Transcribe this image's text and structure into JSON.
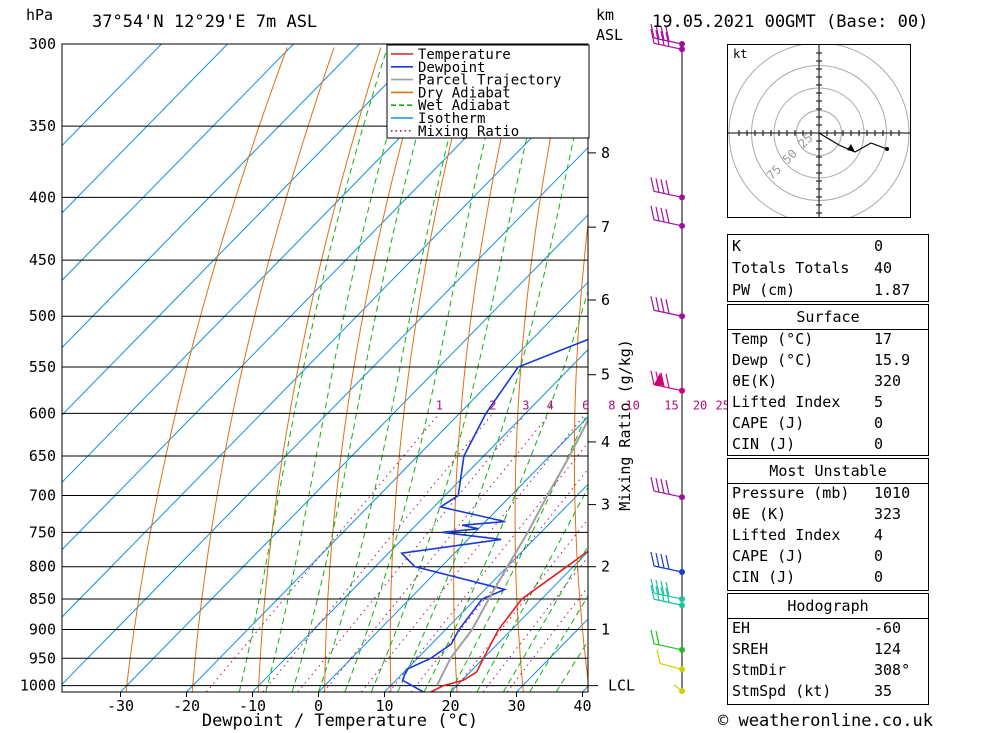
{
  "header": {
    "location": "37°54'N 12°29'E 7m ASL",
    "hpa_unit": "hPa",
    "km_unit": "km",
    "asl": "ASL",
    "datetime": "19.05.2021 00GMT (Base: 00)"
  },
  "footer": {
    "credit": "© weatheronline.co.uk"
  },
  "chart_data": {
    "type": "line",
    "xlabel": "Dewpoint / Temperature (°C)",
    "ylabel_right": "Mixing Ratio (g/kg)",
    "x_ticks": [
      -30,
      -20,
      -10,
      0,
      10,
      20,
      30,
      40
    ],
    "p_levels": [
      300,
      350,
      400,
      450,
      500,
      550,
      600,
      650,
      700,
      750,
      800,
      850,
      900,
      950,
      1000
    ],
    "ylim_hpa": [
      1010,
      300
    ],
    "xlim_c": [
      -38,
      40
    ],
    "km_ticks": [
      {
        "km": 1,
        "p": 900
      },
      {
        "km": 2,
        "p": 800
      },
      {
        "km": 3,
        "p": 712
      },
      {
        "km": 4,
        "p": 633
      },
      {
        "km": 5,
        "p": 558
      },
      {
        "km": 6,
        "p": 485
      },
      {
        "km": 7,
        "p": 423
      },
      {
        "km": 8,
        "p": 368
      }
    ],
    "lcl": {
      "label": "LCL",
      "p": 1000
    },
    "mixing_ratio_labels": [
      "1",
      "2",
      "3",
      "4",
      "6",
      "8",
      "10",
      "15",
      "20",
      "25"
    ],
    "legend": [
      {
        "name": "Temperature",
        "color": "#e02020",
        "style": "solid"
      },
      {
        "name": "Dewpoint",
        "color": "#1a3bd0",
        "style": "solid"
      },
      {
        "name": "Parcel Trajectory",
        "color": "#a0a0a0",
        "style": "solid"
      },
      {
        "name": "Dry Adiabat",
        "color": "#e07010",
        "style": "solid"
      },
      {
        "name": "Wet Adiabat",
        "color": "#10b010",
        "style": "dashed"
      },
      {
        "name": "Isotherm",
        "color": "#1090e0",
        "style": "solid"
      },
      {
        "name": "Mixing Ratio",
        "color": "#b0107a",
        "style": "dotted"
      }
    ],
    "series": [
      {
        "name": "Temperature",
        "points": [
          [
            1012,
            17
          ],
          [
            1000,
            18
          ],
          [
            990,
            20.2
          ],
          [
            975,
            21
          ],
          [
            950,
            20
          ],
          [
            925,
            19
          ],
          [
            900,
            18
          ],
          [
            850,
            17
          ],
          [
            800,
            19
          ],
          [
            775,
            20
          ],
          [
            750,
            20
          ],
          [
            740,
            21
          ],
          [
            725,
            19
          ],
          [
            700,
            16
          ],
          [
            650,
            12
          ],
          [
            600,
            7
          ],
          [
            550,
            3
          ],
          [
            500,
            -2
          ],
          [
            475,
            -3.5
          ],
          [
            450,
            -7
          ],
          [
            420,
            -10
          ],
          [
            400,
            -13
          ],
          [
            380,
            -13.5
          ],
          [
            360,
            -15
          ],
          [
            340,
            -18
          ],
          [
            320,
            -21
          ],
          [
            300,
            -24
          ]
        ]
      },
      {
        "name": "Dewpoint",
        "points": [
          [
            1012,
            15.9
          ],
          [
            990,
            11
          ],
          [
            970,
            10
          ],
          [
            950,
            12
          ],
          [
            925,
            13
          ],
          [
            900,
            12
          ],
          [
            850,
            11
          ],
          [
            835,
            13
          ],
          [
            800,
            -4
          ],
          [
            780,
            -8
          ],
          [
            760,
            5
          ],
          [
            750,
            -5
          ],
          [
            745,
            0
          ],
          [
            740,
            -3
          ],
          [
            735,
            3
          ],
          [
            715,
            -9
          ],
          [
            700,
            -8
          ],
          [
            650,
            -13
          ],
          [
            600,
            -16
          ],
          [
            550,
            -18
          ],
          [
            500,
            -6
          ],
          [
            470,
            0
          ],
          [
            450,
            1
          ],
          [
            445,
            -1
          ],
          [
            440,
            3
          ],
          [
            435,
            1
          ],
          [
            430,
            -4
          ],
          [
            420,
            1
          ],
          [
            410,
            -4
          ],
          [
            400,
            2
          ],
          [
            380,
            -7
          ],
          [
            370,
            -10
          ],
          [
            360,
            -11
          ],
          [
            340,
            -11
          ],
          [
            320,
            -11
          ],
          [
            300,
            -12
          ]
        ]
      },
      {
        "name": "Parcel Trajectory",
        "points": [
          [
            1000,
            17
          ],
          [
            950,
            15
          ],
          [
            900,
            14
          ],
          [
            850,
            12
          ],
          [
            800,
            10
          ],
          [
            750,
            8
          ],
          [
            700,
            5.5
          ],
          [
            650,
            3
          ],
          [
            600,
            0
          ],
          [
            550,
            -3.5
          ],
          [
            500,
            -7
          ],
          [
            450,
            -11
          ],
          [
            400,
            -16
          ],
          [
            350,
            -23
          ],
          [
            300,
            -31
          ]
        ]
      }
    ],
    "winds": [
      {
        "p": 1010,
        "color": "#d0d000",
        "barb": "calm"
      },
      {
        "p": 970,
        "color": "#d0d000",
        "barb": "short"
      },
      {
        "p": 935,
        "color": "#20c020",
        "barb": "medium"
      },
      {
        "p": 860,
        "color": "#20c0a0",
        "barb": "long"
      },
      {
        "p": 850,
        "color": "#20c0a0",
        "barb": "long"
      },
      {
        "p": 808,
        "color": "#1a3bd0",
        "barb": "long"
      },
      {
        "p": 702,
        "color": "#a010a0",
        "barb": "long"
      },
      {
        "p": 575,
        "color": "#d0007a",
        "barb": "flag"
      },
      {
        "p": 500,
        "color": "#a010a0",
        "barb": "long"
      },
      {
        "p": 422,
        "color": "#a010a0",
        "barb": "long"
      },
      {
        "p": 400,
        "color": "#a010a0",
        "barb": "long"
      },
      {
        "p": 303,
        "color": "#a010a0",
        "barb": "long"
      },
      {
        "p": 300,
        "color": "#a010a0",
        "barb": "long"
      }
    ],
    "hodograph": {
      "unit_label": "kt",
      "ring_labels": [
        "25",
        "50",
        "75"
      ]
    }
  },
  "indices": {
    "top": [
      {
        "k": "K",
        "v": "0"
      },
      {
        "k": "Totals Totals",
        "v": "40"
      },
      {
        "k": "PW (cm)",
        "v": "1.87"
      }
    ],
    "surface": {
      "title": "Surface",
      "rows": [
        {
          "k": "Temp (°C)",
          "v": "17"
        },
        {
          "k": "Dewp (°C)",
          "v": "15.9"
        },
        {
          "k": "θE(K)",
          "v": "320"
        },
        {
          "k": "Lifted Index",
          "v": "5"
        },
        {
          "k": "CAPE (J)",
          "v": "0"
        },
        {
          "k": "CIN (J)",
          "v": "0"
        }
      ]
    },
    "most_unstable": {
      "title": "Most Unstable",
      "rows": [
        {
          "k": "Pressure (mb)",
          "v": "1010"
        },
        {
          "k": "θE (K)",
          "v": "323"
        },
        {
          "k": "Lifted Index",
          "v": "4"
        },
        {
          "k": "CAPE (J)",
          "v": "0"
        },
        {
          "k": "CIN (J)",
          "v": "0"
        }
      ]
    },
    "hodograph": {
      "title": "Hodograph",
      "rows": [
        {
          "k": "EH",
          "v": "-60"
        },
        {
          "k": "SREH",
          "v": "124"
        },
        {
          "k": "StmDir",
          "v": "308°"
        },
        {
          "k": "StmSpd (kt)",
          "v": "35"
        }
      ]
    }
  }
}
